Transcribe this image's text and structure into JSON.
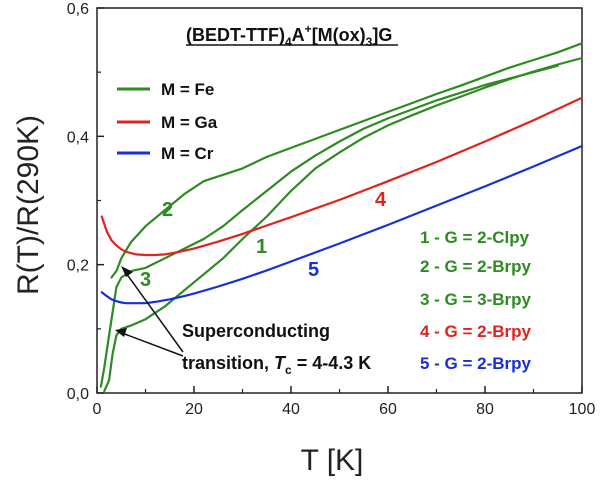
{
  "chart_data": {
    "type": "line",
    "title": {
      "prefix": "(BEDT-TTF)",
      "sub1": "4",
      "mid": "A",
      "sup": "+",
      "bracket": "[M(ox)",
      "sub2": "3",
      "suffix": "]G"
    },
    "xlabel": "T [K]",
    "ylabel": "R(T)/R(290K)",
    "xlim": [
      0,
      100
    ],
    "ylim": [
      0,
      0.6
    ],
    "x_ticks": [
      0,
      20,
      40,
      60,
      80,
      100
    ],
    "x_tick_labels": [
      "0",
      "20",
      "40",
      "60",
      "80",
      "100"
    ],
    "y_ticks": [
      0,
      0.2,
      0.4,
      0.6
    ],
    "y_tick_labels": [
      "0,0",
      "0,2",
      "0,4",
      "0,6"
    ],
    "colors": {
      "Fe": "#2e8b22",
      "Ga": "#e0231c",
      "Cr": "#1a2fd6"
    },
    "legend": [
      {
        "label": "M = Fe",
        "color": "#2e8b22"
      },
      {
        "label": "M = Ga",
        "color": "#e0231c"
      },
      {
        "label": "M = Cr",
        "color": "#1a2fd6"
      }
    ],
    "g_labels": [
      {
        "text": "1 - G = 2-Clpy",
        "color": "#2e8b22"
      },
      {
        "text": "2 - G = 2-Brpy",
        "color": "#2e8b22"
      },
      {
        "text": "3 - G = 3-Brpy",
        "color": "#2e8b22"
      },
      {
        "text": "4 - G = 2-Brpy",
        "color": "#e0231c"
      },
      {
        "text": "5 - G = 2-Brpy",
        "color": "#1a2fd6"
      }
    ],
    "annotation": {
      "line1": "Superconducting",
      "line2_prefix": "transition, ",
      "tc_symbol": "T",
      "tc_sub": "c",
      "line2_suffix": " = 4-4.3 K"
    },
    "series": [
      {
        "name": "1",
        "label_text": "1",
        "color": "#2e8b22",
        "x": [
          1.5,
          2.5,
          3.2,
          4,
          5,
          7,
          10,
          14,
          18,
          22,
          26,
          30,
          35,
          40,
          45,
          50,
          55,
          60,
          65,
          70,
          75,
          80,
          85,
          90,
          95,
          100
        ],
        "y": [
          0.003,
          0.02,
          0.06,
          0.09,
          0.1,
          0.105,
          0.115,
          0.135,
          0.16,
          0.185,
          0.21,
          0.24,
          0.275,
          0.315,
          0.35,
          0.375,
          0.398,
          0.417,
          0.433,
          0.448,
          0.462,
          0.476,
          0.489,
          0.501,
          0.512,
          0.522
        ]
      },
      {
        "name": "2",
        "label_text": "2",
        "color": "#2e8b22",
        "x": [
          3,
          4,
          5,
          7,
          10,
          14,
          18,
          22,
          26,
          30,
          35,
          40,
          45,
          50,
          55,
          60,
          65,
          70,
          75,
          80,
          85,
          90,
          95,
          100
        ],
        "y": [
          0.18,
          0.19,
          0.21,
          0.235,
          0.26,
          0.285,
          0.31,
          0.33,
          0.34,
          0.35,
          0.368,
          0.382,
          0.396,
          0.41,
          0.424,
          0.438,
          0.452,
          0.466,
          0.479,
          0.493,
          0.507,
          0.519,
          0.531,
          0.545
        ]
      },
      {
        "name": "3",
        "label_text": "3",
        "color": "#2e8b22",
        "x": [
          0.8,
          1.5,
          2.5,
          3.3,
          4,
          5,
          7,
          10,
          14,
          18,
          22,
          26,
          30,
          35,
          40,
          45,
          50,
          55,
          60,
          65,
          70,
          75,
          80,
          85,
          90,
          95
        ],
        "y": [
          0.01,
          0.04,
          0.09,
          0.13,
          0.165,
          0.18,
          0.19,
          0.195,
          0.21,
          0.225,
          0.24,
          0.26,
          0.285,
          0.315,
          0.345,
          0.37,
          0.392,
          0.412,
          0.428,
          0.442,
          0.456,
          0.468,
          0.48,
          0.49,
          0.5,
          0.51
        ]
      },
      {
        "name": "4",
        "label_text": "4",
        "color": "#e0231c",
        "x": [
          1,
          2,
          3,
          4,
          5,
          6,
          8,
          10,
          12,
          14,
          17,
          20,
          25,
          30,
          35,
          40,
          50,
          60,
          70,
          80,
          90,
          100
        ],
        "y": [
          0.275,
          0.252,
          0.238,
          0.23,
          0.224,
          0.22,
          0.216,
          0.215,
          0.215,
          0.216,
          0.22,
          0.225,
          0.236,
          0.248,
          0.261,
          0.274,
          0.301,
          0.33,
          0.36,
          0.392,
          0.425,
          0.46
        ]
      },
      {
        "name": "5",
        "label_text": "5",
        "color": "#1a2fd6",
        "x": [
          1,
          2,
          3,
          4,
          5,
          6,
          8,
          10,
          12,
          15,
          18,
          20,
          25,
          30,
          35,
          40,
          50,
          60,
          70,
          80,
          90,
          100
        ],
        "y": [
          0.157,
          0.151,
          0.146,
          0.143,
          0.141,
          0.14,
          0.14,
          0.14,
          0.142,
          0.146,
          0.151,
          0.155,
          0.166,
          0.178,
          0.191,
          0.205,
          0.233,
          0.262,
          0.292,
          0.322,
          0.353,
          0.385
        ]
      }
    ]
  }
}
